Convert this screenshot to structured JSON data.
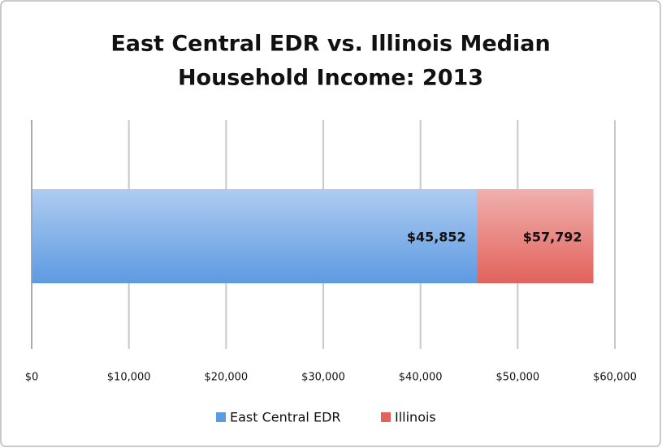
{
  "chart_data": {
    "type": "bar",
    "orientation": "horizontal",
    "overlap": true,
    "title": [
      "East Central EDR vs. Illinois Median",
      "Household Income: 2013"
    ],
    "categories": [
      null
    ],
    "series": [
      {
        "name": "East Central EDR",
        "color": "#5d9ae2",
        "values": [
          45852
        ],
        "value_labels": [
          "$45,852"
        ]
      },
      {
        "name": "Illinois",
        "color": "#e2625c",
        "values": [
          57792
        ],
        "value_labels": [
          "$57,792"
        ]
      }
    ],
    "xlim": [
      0,
      60000
    ],
    "xticks": [
      {
        "value": 0,
        "label": "$0"
      },
      {
        "value": 10000,
        "label": "$10,000"
      },
      {
        "value": 20000,
        "label": "$20,000"
      },
      {
        "value": 30000,
        "label": "$30,000"
      },
      {
        "value": 40000,
        "label": "$40,000"
      },
      {
        "value": 50000,
        "label": "$50,000"
      },
      {
        "value": 60000,
        "label": "$60,000"
      }
    ],
    "grid": true,
    "legend": "bottom"
  }
}
